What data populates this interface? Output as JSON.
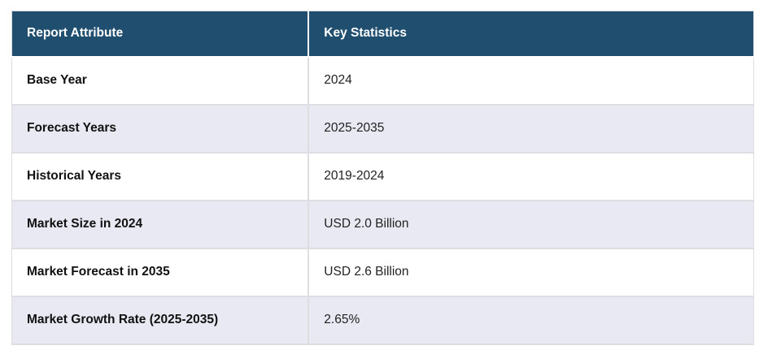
{
  "chart_data": {
    "type": "table",
    "columns": [
      "Report Attribute",
      "Key Statistics"
    ],
    "rows": [
      [
        "Base Year",
        "2024"
      ],
      [
        "Forecast Years",
        "2025-2035"
      ],
      [
        "Historical Years",
        "2019-2024"
      ],
      [
        "Market Size in 2024",
        "USD 2.0 Billion"
      ],
      [
        "Market Forecast in 2035",
        "USD 2.6 Billion"
      ],
      [
        "Market Growth Rate (2025-2035)",
        "2.65%"
      ]
    ]
  },
  "table": {
    "columns": [
      "Report Attribute",
      "Key Statistics"
    ],
    "rows": [
      {
        "attribute": "Base Year",
        "value": "2024"
      },
      {
        "attribute": "Forecast Years",
        "value": "2025-2035"
      },
      {
        "attribute": "Historical Years",
        "value": "2019-2024"
      },
      {
        "attribute": "Market Size in 2024",
        "value": "USD 2.0 Billion"
      },
      {
        "attribute": "Market Forecast in 2035",
        "value": "USD 2.6 Billion"
      },
      {
        "attribute": "Market Growth Rate (2025-2035)",
        "value": "2.65%"
      }
    ],
    "colors": {
      "header_bg": "#204E6F",
      "header_text": "#FFFFFF",
      "row_bg": "#FFFFFF",
      "row_alt_bg": "#E8E9F3",
      "border": "#DDDDE2",
      "attribute_text": "#111111",
      "value_text": "#222222"
    }
  }
}
